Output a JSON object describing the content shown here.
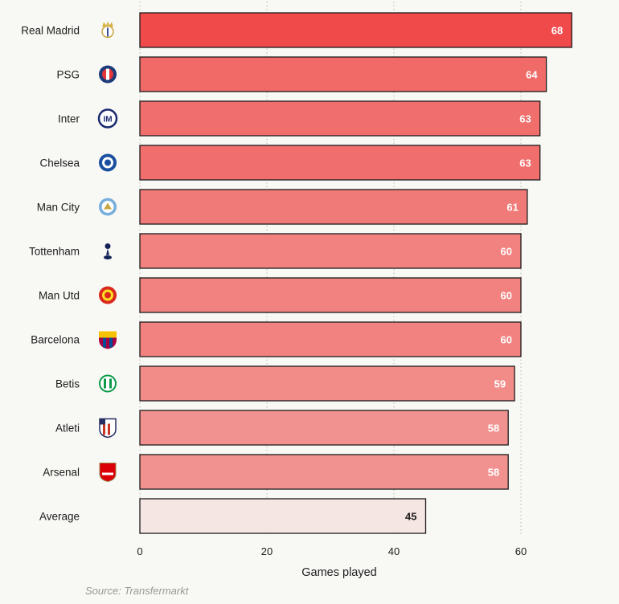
{
  "chart_data": {
    "type": "bar",
    "orientation": "horizontal",
    "categories": [
      "Real Madrid",
      "PSG",
      "Inter",
      "Chelsea",
      "Man City",
      "Tottenham",
      "Man Utd",
      "Barcelona",
      "Betis",
      "Atleti",
      "Arsenal",
      "Average"
    ],
    "icons": [
      "real-madrid-crest-icon",
      "psg-crest-icon",
      "inter-crest-icon",
      "chelsea-crest-icon",
      "man-city-crest-icon",
      "tottenham-crest-icon",
      "man-utd-crest-icon",
      "barcelona-crest-icon",
      "betis-crest-icon",
      "atleti-crest-icon",
      "arsenal-crest-icon",
      ""
    ],
    "values": [
      68,
      64,
      63,
      63,
      61,
      60,
      60,
      60,
      59,
      58,
      58,
      45
    ],
    "bar_colors": [
      "#f04a4b",
      "#f06a68",
      "#f06e6c",
      "#f06e6c",
      "#f07a77",
      "#f2827f",
      "#f2827f",
      "#f2827f",
      "#f28c89",
      "#f29290",
      "#f29290",
      "#f6e6e3"
    ],
    "title": "",
    "xlabel": "Games played",
    "ylabel": "",
    "xlim": [
      0,
      70
    ],
    "xticks": [
      0,
      20,
      40,
      60
    ],
    "grid": "vertical dotted"
  },
  "source": "Source: Transfermarkt"
}
